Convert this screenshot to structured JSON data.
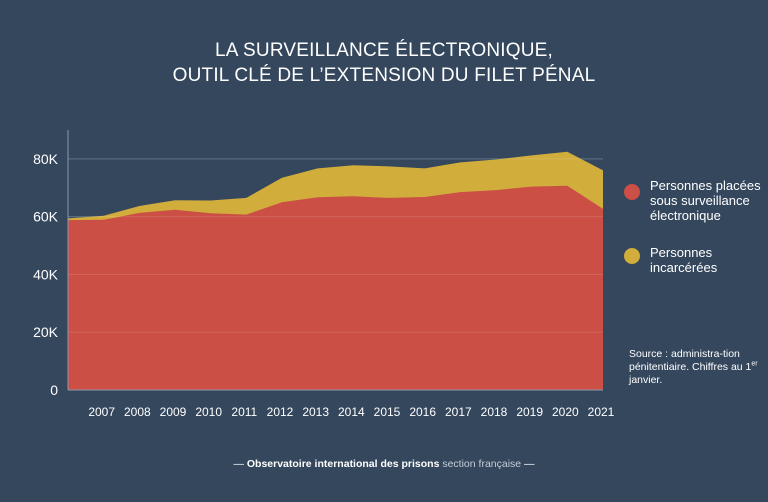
{
  "title_line1": "LA SURVEILLANCE ÉLECTRONIQUE,",
  "title_line2": "OUTIL CLÉ DE L’EXTENSION DU FILET PÉNAL",
  "legend": {
    "electronic": "Personnes placées sous surveillance électronique",
    "incarcerated": "Personnes incarcérées"
  },
  "source": {
    "text": "Source : administra-tion pénitentiaire. Chiffres au 1",
    "sup": "er",
    "tail": " janvier."
  },
  "footer": {
    "dash_left": "— ",
    "org": "Observatoire international des prisons",
    "section": " section française",
    "dash_right": " —"
  },
  "colors": {
    "background": "#34475d",
    "electronic": "#cb4f45",
    "incarcerated": "#d1ad3c"
  },
  "chart_data": {
    "type": "area",
    "x": [
      "2006",
      "2007",
      "2008",
      "2009",
      "2010",
      "2011",
      "2012",
      "2013",
      "2014",
      "2015",
      "2016",
      "2017",
      "2018",
      "2019",
      "2020",
      "2021"
    ],
    "x_tick_labels": [
      "2007",
      "2008",
      "2009",
      "2010",
      "2011",
      "2012",
      "2013",
      "2014",
      "2015",
      "2016",
      "2017",
      "2018",
      "2019",
      "2020",
      "2021"
    ],
    "series": [
      {
        "name": "Personnes placées sous surveillance électronique",
        "values": [
          58800,
          58900,
          61300,
          62400,
          61200,
          60700,
          65000,
          66700,
          67100,
          66500,
          66800,
          68500,
          69200,
          70400,
          70700,
          62700
        ]
      },
      {
        "name": "Personnes incarcérées",
        "values": [
          59400,
          60300,
          63700,
          65700,
          65600,
          66500,
          73500,
          76700,
          77800,
          77400,
          76700,
          78800,
          79800,
          81200,
          82500,
          76000
        ]
      }
    ],
    "y_ticks": [
      "0",
      "20K",
      "40K",
      "60K",
      "80K"
    ],
    "y_tick_values": [
      0,
      20000,
      40000,
      60000,
      80000
    ],
    "ylim": [
      0,
      90000
    ],
    "grid": "horizontal",
    "legend_position": "right"
  }
}
